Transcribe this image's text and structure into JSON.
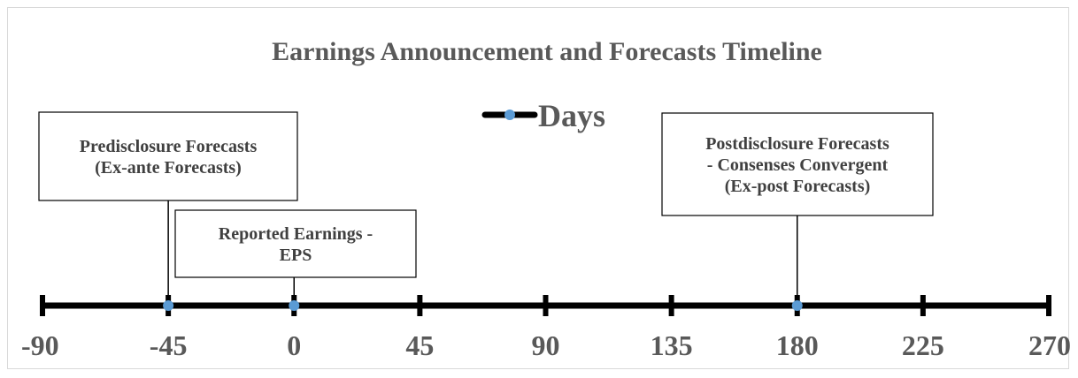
{
  "chart_data": {
    "type": "line",
    "title": "Earnings Announcement and Forecasts Timeline",
    "legend": {
      "label": "Days",
      "placement": "top-center"
    },
    "x_axis": {
      "range": [
        -90,
        270
      ],
      "ticks": [
        -90,
        -45,
        0,
        45,
        90,
        135,
        180,
        225,
        270
      ],
      "tick_labels": [
        "-90",
        "-45",
        "0",
        "45",
        "90",
        "135",
        "180",
        "225",
        "270"
      ]
    },
    "series": [
      {
        "name": "Days",
        "x": [
          -45,
          0,
          180
        ],
        "color": "#5b9bd5"
      }
    ],
    "annotations": [
      {
        "x": -45,
        "lines": [
          "Predisclosure Forecasts",
          "(Ex-ante Forecasts)"
        ]
      },
      {
        "x": 0,
        "lines": [
          "Reported Earnings -",
          "EPS"
        ]
      },
      {
        "x": 180,
        "lines": [
          "Postdisclosure Forecasts",
          "-  Consenses Convergent",
          "(Ex-post Forecasts)"
        ]
      }
    ],
    "grid": false,
    "colors": {
      "axis_line": "#000000",
      "marker": "#5b9bd5",
      "text": "#595959"
    }
  }
}
